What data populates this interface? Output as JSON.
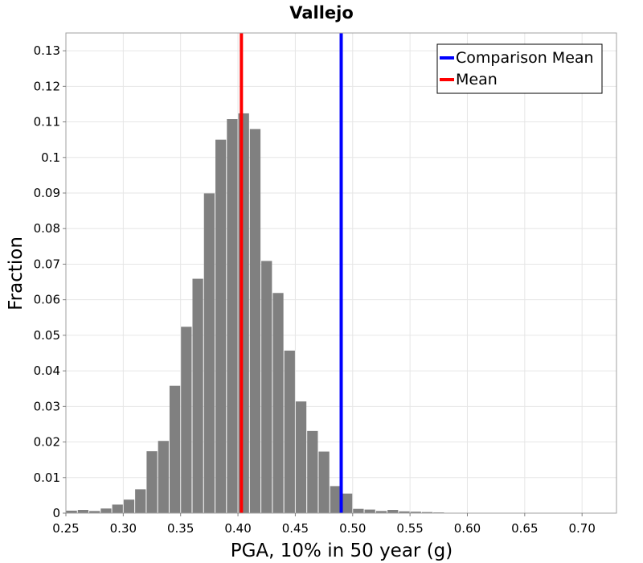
{
  "chart_data": {
    "type": "bar",
    "title": "Vallejo",
    "xlabel": "PGA, 10% in 50 year (g)",
    "ylabel": "Fraction",
    "xlim": [
      0.25,
      0.73
    ],
    "ylim": [
      0,
      0.135
    ],
    "bin_width": 0.01,
    "x_ticks": [
      0.25,
      0.3,
      0.35,
      0.4,
      0.45,
      0.5,
      0.55,
      0.6,
      0.65,
      0.7
    ],
    "x_tick_labels": [
      "0.25",
      "0.30",
      "0.35",
      "0.40",
      "0.45",
      "0.50",
      "0.55",
      "0.60",
      "0.65",
      "0.70"
    ],
    "y_ticks": [
      0,
      0.01,
      0.02,
      0.03,
      0.04,
      0.05,
      0.06,
      0.07,
      0.08,
      0.09,
      0.1,
      0.11,
      0.12,
      0.13
    ],
    "y_tick_labels": [
      "0",
      "0.01",
      "0.02",
      "0.03",
      "0.04",
      "0.05",
      "0.06",
      "0.07",
      "0.08",
      "0.09",
      "0.1",
      "0.11",
      "0.12",
      "0.13"
    ],
    "grid": true,
    "bar_color": "#808080",
    "series": [
      {
        "name": "Fraction",
        "bin_centers": [
          0.255,
          0.265,
          0.275,
          0.285,
          0.295,
          0.305,
          0.315,
          0.325,
          0.335,
          0.345,
          0.355,
          0.365,
          0.375,
          0.385,
          0.395,
          0.405,
          0.415,
          0.425,
          0.435,
          0.445,
          0.455,
          0.465,
          0.475,
          0.485,
          0.495,
          0.505,
          0.515,
          0.525,
          0.535,
          0.545,
          0.555,
          0.565,
          0.575
        ],
        "values": [
          0.0007,
          0.0009,
          0.0006,
          0.0013,
          0.0024,
          0.0038,
          0.0067,
          0.0174,
          0.0203,
          0.0358,
          0.0524,
          0.0659,
          0.0899,
          0.105,
          0.1108,
          0.1124,
          0.108,
          0.0709,
          0.0619,
          0.0457,
          0.0314,
          0.0231,
          0.0173,
          0.0076,
          0.0055,
          0.0012,
          0.001,
          0.0006,
          0.0009,
          0.0005,
          0.0004,
          0.0003,
          0.0002
        ]
      }
    ],
    "reference_lines": [
      {
        "name": "Comparison Mean",
        "x": 0.49,
        "color": "#0000ff"
      },
      {
        "name": "Mean",
        "x": 0.403,
        "color": "#ff0000"
      }
    ],
    "legend": {
      "position": "top-right",
      "entries": [
        {
          "label": "Comparison Mean",
          "color": "#0000ff"
        },
        {
          "label": "Mean",
          "color": "#ff0000"
        }
      ]
    }
  }
}
